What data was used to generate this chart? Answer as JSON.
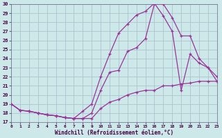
{
  "xlabel": "Windchill (Refroidissement éolien,°C)",
  "bg_color": "#cce8e8",
  "grid_color": "#aabbcc",
  "line_color": "#993399",
  "xlim": [
    0,
    23
  ],
  "ylim": [
    17,
    30
  ],
  "yticks": [
    17,
    18,
    19,
    20,
    21,
    22,
    23,
    24,
    25,
    26,
    27,
    28,
    29,
    30
  ],
  "xticks": [
    0,
    1,
    2,
    3,
    4,
    5,
    6,
    7,
    8,
    9,
    10,
    11,
    12,
    13,
    14,
    15,
    16,
    17,
    18,
    19,
    20,
    21,
    22,
    23
  ],
  "line1_x": [
    0,
    1,
    2,
    3,
    4,
    5,
    6,
    7,
    8,
    9,
    10,
    11,
    12,
    13,
    14,
    15,
    16,
    17,
    18,
    19,
    20,
    21,
    22,
    23
  ],
  "line1_y": [
    19.0,
    18.3,
    18.2,
    18.0,
    17.8,
    17.7,
    17.5,
    17.4,
    17.4,
    18.0,
    20.5,
    22.5,
    22.7,
    24.8,
    25.2,
    26.2,
    30.0,
    30.0,
    28.5,
    26.5,
    26.5,
    24.0,
    23.0,
    21.5
  ],
  "line2_x": [
    0,
    1,
    2,
    3,
    4,
    5,
    6,
    7,
    8,
    9,
    10,
    11,
    12,
    13,
    14,
    15,
    16,
    17,
    18,
    19,
    20,
    21,
    22,
    23
  ],
  "line2_y": [
    19.0,
    18.3,
    18.2,
    18.0,
    17.8,
    17.7,
    17.5,
    17.4,
    18.2,
    19.0,
    22.0,
    24.5,
    26.8,
    27.8,
    28.8,
    29.2,
    30.1,
    28.7,
    27.0,
    20.5,
    24.5,
    23.5,
    23.0,
    22.0
  ],
  "line3_x": [
    0,
    1,
    2,
    3,
    4,
    5,
    6,
    7,
    8,
    9,
    10,
    11,
    12,
    13,
    14,
    15,
    16,
    17,
    18,
    19,
    20,
    21,
    22,
    23
  ],
  "line3_y": [
    19.0,
    18.3,
    18.2,
    18.0,
    17.8,
    17.7,
    17.5,
    17.4,
    17.4,
    17.4,
    18.5,
    19.2,
    19.5,
    20.0,
    20.3,
    20.5,
    20.5,
    21.0,
    21.0,
    21.2,
    21.3,
    21.5,
    21.5,
    21.5
  ]
}
